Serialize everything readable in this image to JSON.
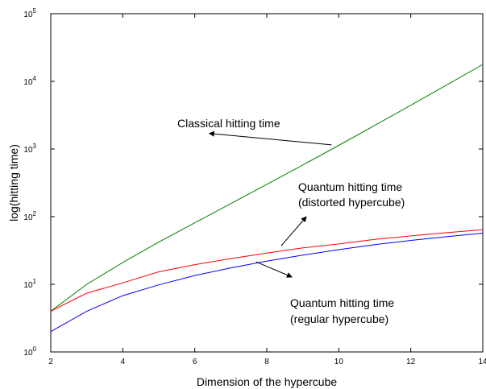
{
  "chart_data": {
    "type": "line",
    "xlabel": "Dimension of the hypercube",
    "ylabel": "log(hitting time)",
    "xlim": [
      2,
      14
    ],
    "ylim": [
      1,
      100000
    ],
    "yscale": "log",
    "grid": false,
    "legend": "none",
    "x_ticks": [
      "2",
      "4",
      "6",
      "8",
      "10",
      "12",
      "14"
    ],
    "y_ticks": [
      {
        "value": 1,
        "base": "10",
        "exp": "0"
      },
      {
        "value": 10,
        "base": "10",
        "exp": "1"
      },
      {
        "value": 100,
        "base": "10",
        "exp": "2"
      },
      {
        "value": 1000,
        "base": "10",
        "exp": "3"
      },
      {
        "value": 10000,
        "base": "10",
        "exp": "4"
      },
      {
        "value": 100000,
        "base": "10",
        "exp": "5"
      }
    ],
    "x": [
      2,
      3,
      4,
      5,
      6,
      7,
      8,
      9,
      10,
      11,
      12,
      13,
      14
    ],
    "series": [
      {
        "key": "classical",
        "color": "#008000",
        "values": [
          4,
          10,
          21,
          42,
          81,
          156,
          300,
          580,
          1130,
          2230,
          4430,
          8860,
          17800
        ]
      },
      {
        "key": "quantum-distorted",
        "color": "#ff0000",
        "values": [
          4,
          7.4,
          10.5,
          15.3,
          19.5,
          24,
          29,
          34.5,
          39.5,
          46,
          52,
          58,
          64
        ]
      },
      {
        "key": "quantum-regular",
        "color": "#0000ff",
        "values": [
          2,
          4,
          6.8,
          9.8,
          13.5,
          17.5,
          22,
          27,
          32.5,
          38.5,
          44.5,
          50.5,
          57
        ]
      }
    ],
    "annotations": [
      {
        "key": "classical",
        "lines": [
          "Classical hitting time"
        ],
        "arrow_from": [
          9.8,
          1150
        ],
        "arrow_to": [
          6.4,
          1700
        ]
      },
      {
        "key": "quantum-distorted",
        "lines": [
          "Quantum hitting time",
          "(distorted hypercube)"
        ],
        "arrow_from": [
          8.4,
          37
        ],
        "arrow_to": [
          9.1,
          100
        ]
      },
      {
        "key": "quantum-regular",
        "lines": [
          "Quantum hitting time",
          "(regular hypercube)"
        ],
        "arrow_from": [
          7.7,
          21.5
        ],
        "arrow_to": [
          8.7,
          12.8
        ]
      }
    ]
  }
}
